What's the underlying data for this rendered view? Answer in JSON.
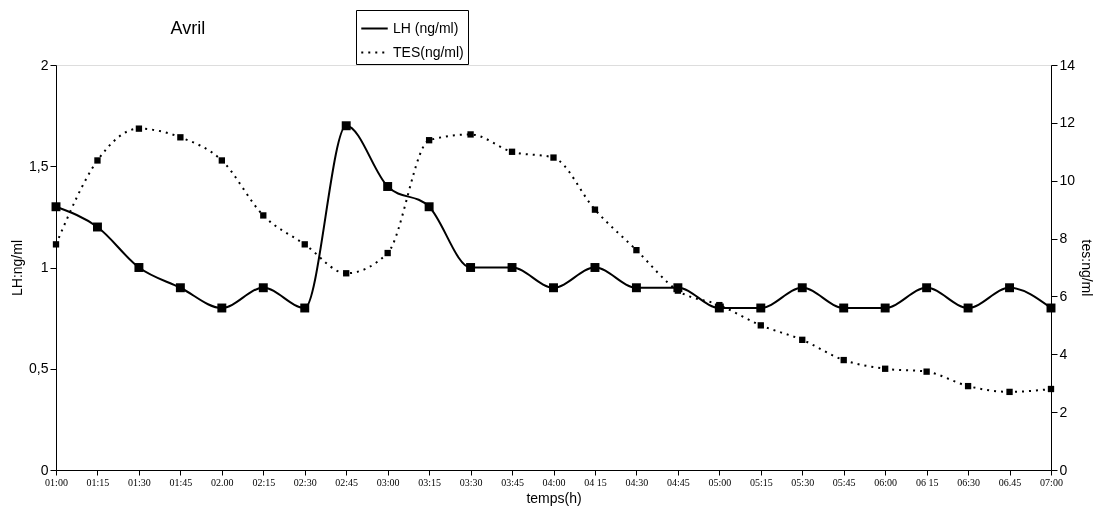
{
  "chart_data": {
    "type": "line",
    "title": "Avril",
    "xlabel": "temps(h)",
    "ylabel": "LH:ng/ml",
    "y2label": "tes:ng/ml",
    "categories": [
      "01:00",
      "01:15",
      "01:30",
      "01:45",
      "02.00",
      "02:15",
      "02:30",
      "02:45",
      "03:00",
      "03:15",
      "03:30",
      "03:45",
      "04:00",
      "04 15",
      "04:30",
      "04:45",
      "05:00",
      "05:15",
      "05:30",
      "05:45",
      "06:00",
      "06 15",
      "06:30",
      "06.45",
      "07:00"
    ],
    "series": [
      {
        "name": "LH (ng/ml)",
        "color": "#000000",
        "line_style": "solid",
        "values": [
          1.3,
          1.2,
          1.0,
          0.9,
          0.8,
          0.9,
          0.8,
          1.7,
          1.4,
          1.3,
          1.0,
          1.0,
          0.9,
          1.0,
          0.9,
          0.9,
          0.8,
          0.8,
          0.9,
          0.8,
          0.8,
          0.9,
          0.8,
          0.9,
          0.8
        ]
      },
      {
        "name": "TES(ng/ml)",
        "color": "#000000",
        "line_style": "dotted",
        "axis": "y2",
        "values": [
          7.8,
          10.7,
          11.8,
          11.5,
          10.7,
          8.8,
          7.8,
          6.8,
          7.5,
          11.4,
          11.6,
          11.0,
          10.8,
          9.0,
          7.6,
          6.2,
          5.7,
          5.0,
          4.5,
          3.8,
          3.5,
          3.4,
          2.9,
          2.7,
          2.8
        ]
      }
    ],
    "ylim": [
      0,
      2
    ],
    "yticks": [
      0,
      {
        "value": 0.5,
        "label": "0,5"
      },
      1,
      {
        "value": 1.5,
        "label": "1,5"
      },
      2
    ],
    "y2lim": [
      0,
      14
    ],
    "y2ticks": [
      0,
      2,
      4,
      6,
      8,
      10,
      12,
      14
    ],
    "grid": false,
    "legend": "top",
    "marker": "square"
  }
}
